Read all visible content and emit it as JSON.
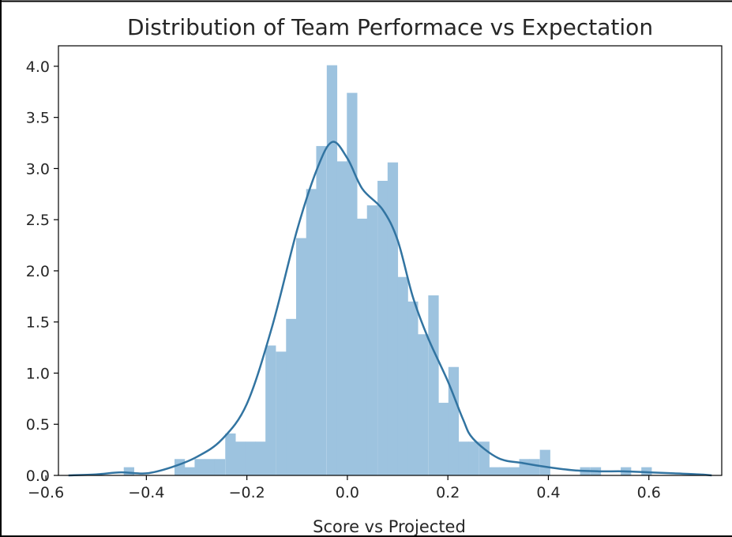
{
  "chart_data": {
    "type": "bar",
    "title": "Distribution of Team Performace vs Expectation",
    "xlabel": "Score vs Projected",
    "ylabel": "",
    "xlim": [
      -0.575,
      0.745
    ],
    "ylim": [
      0.0,
      4.2
    ],
    "x_ticks": [
      -0.6,
      -0.4,
      -0.2,
      0.0,
      0.2,
      0.4,
      0.6
    ],
    "x_tick_labels": [
      "−0.6",
      "−0.4",
      "−0.2",
      "0.0",
      "0.2",
      "0.4",
      "0.6"
    ],
    "y_ticks": [
      0.0,
      0.5,
      1.0,
      1.5,
      2.0,
      2.5,
      3.0,
      3.5,
      4.0
    ],
    "y_tick_labels": [
      "0.0",
      "0.5",
      "1.0",
      "1.5",
      "2.0",
      "2.5",
      "3.0",
      "3.5",
      "4.0"
    ],
    "grid": false,
    "histogram": {
      "name": "histogram",
      "color": "#9dc3df",
      "bin_width": 0.0202,
      "bins": [
        {
          "x0": -0.445,
          "value": 0.08
        },
        {
          "x0": -0.344,
          "value": 0.16
        },
        {
          "x0": -0.324,
          "value": 0.08
        },
        {
          "x0": -0.304,
          "value": 0.16
        },
        {
          "x0": -0.284,
          "value": 0.16
        },
        {
          "x0": -0.264,
          "value": 0.16
        },
        {
          "x0": -0.243,
          "value": 0.41
        },
        {
          "x0": -0.223,
          "value": 0.33
        },
        {
          "x0": -0.203,
          "value": 0.33
        },
        {
          "x0": -0.183,
          "value": 0.33
        },
        {
          "x0": -0.163,
          "value": 1.27
        },
        {
          "x0": -0.142,
          "value": 1.21
        },
        {
          "x0": -0.122,
          "value": 1.53
        },
        {
          "x0": -0.102,
          "value": 2.32
        },
        {
          "x0": -0.082,
          "value": 2.8
        },
        {
          "x0": -0.062,
          "value": 3.22
        },
        {
          "x0": -0.041,
          "value": 4.01
        },
        {
          "x0": -0.021,
          "value": 3.07
        },
        {
          "x0": -0.001,
          "value": 3.74
        },
        {
          "x0": 0.019,
          "value": 2.51
        },
        {
          "x0": 0.039,
          "value": 2.64
        },
        {
          "x0": 0.06,
          "value": 2.88
        },
        {
          "x0": 0.08,
          "value": 3.06
        },
        {
          "x0": 0.1,
          "value": 1.94
        },
        {
          "x0": 0.12,
          "value": 1.7
        },
        {
          "x0": 0.14,
          "value": 1.38
        },
        {
          "x0": 0.161,
          "value": 1.76
        },
        {
          "x0": 0.181,
          "value": 0.71
        },
        {
          "x0": 0.201,
          "value": 1.06
        },
        {
          "x0": 0.221,
          "value": 0.33
        },
        {
          "x0": 0.241,
          "value": 0.33
        },
        {
          "x0": 0.262,
          "value": 0.33
        },
        {
          "x0": 0.282,
          "value": 0.08
        },
        {
          "x0": 0.302,
          "value": 0.08
        },
        {
          "x0": 0.322,
          "value": 0.08
        },
        {
          "x0": 0.342,
          "value": 0.16
        },
        {
          "x0": 0.362,
          "value": 0.16
        },
        {
          "x0": 0.383,
          "value": 0.25
        },
        {
          "x0": 0.463,
          "value": 0.08
        },
        {
          "x0": 0.484,
          "value": 0.08
        },
        {
          "x0": 0.544,
          "value": 0.08
        },
        {
          "x0": 0.585,
          "value": 0.08
        }
      ]
    },
    "kde": {
      "name": "kde",
      "color": "#3274a1",
      "x": [
        -0.555,
        -0.5,
        -0.45,
        -0.4,
        -0.35,
        -0.3,
        -0.25,
        -0.2,
        -0.15,
        -0.1,
        -0.06,
        -0.03,
        0.0,
        0.03,
        0.07,
        0.1,
        0.13,
        0.16,
        0.2,
        0.23,
        0.25,
        0.3,
        0.35,
        0.4,
        0.45,
        0.5,
        0.55,
        0.6,
        0.65,
        0.7,
        0.725
      ],
      "y": [
        0.0,
        0.01,
        0.03,
        0.02,
        0.08,
        0.18,
        0.35,
        0.7,
        1.45,
        2.4,
        3.0,
        3.26,
        3.1,
        2.8,
        2.6,
        2.3,
        1.75,
        1.35,
        0.92,
        0.55,
        0.36,
        0.17,
        0.12,
        0.08,
        0.05,
        0.04,
        0.04,
        0.03,
        0.02,
        0.01,
        0.0
      ]
    }
  }
}
